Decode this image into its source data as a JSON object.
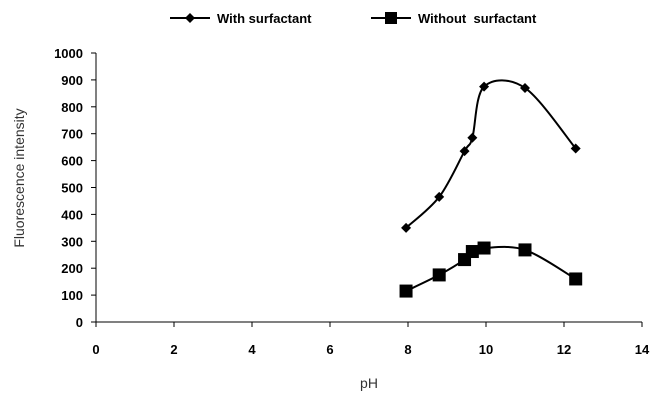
{
  "chart_data": {
    "type": "line",
    "xlabel": "pH",
    "ylabel": "Fluorescence intensity",
    "xlim": [
      0,
      14
    ],
    "ylim": [
      0,
      1000
    ],
    "x_ticks": [
      0,
      2,
      4,
      6,
      8,
      10,
      12,
      14
    ],
    "y_ticks": [
      0,
      100,
      200,
      300,
      400,
      500,
      600,
      700,
      800,
      900,
      1000
    ],
    "grid": false,
    "legend_position": "top",
    "smooth": true,
    "series": [
      {
        "name": "With surfactant",
        "marker": "diamond",
        "color": "#000000",
        "points": [
          {
            "x": 7.95,
            "y": 350
          },
          {
            "x": 8.8,
            "y": 465
          },
          {
            "x": 9.45,
            "y": 635
          },
          {
            "x": 9.65,
            "y": 685
          },
          {
            "x": 9.95,
            "y": 875
          },
          {
            "x": 11.0,
            "y": 870
          },
          {
            "x": 12.3,
            "y": 645
          }
        ]
      },
      {
        "name": "Without  surfactant",
        "marker": "square",
        "color": "#000000",
        "points": [
          {
            "x": 7.95,
            "y": 115
          },
          {
            "x": 8.8,
            "y": 175
          },
          {
            "x": 9.45,
            "y": 232
          },
          {
            "x": 9.65,
            "y": 262
          },
          {
            "x": 9.95,
            "y": 275
          },
          {
            "x": 11.0,
            "y": 268
          },
          {
            "x": 12.3,
            "y": 160
          }
        ]
      }
    ]
  }
}
